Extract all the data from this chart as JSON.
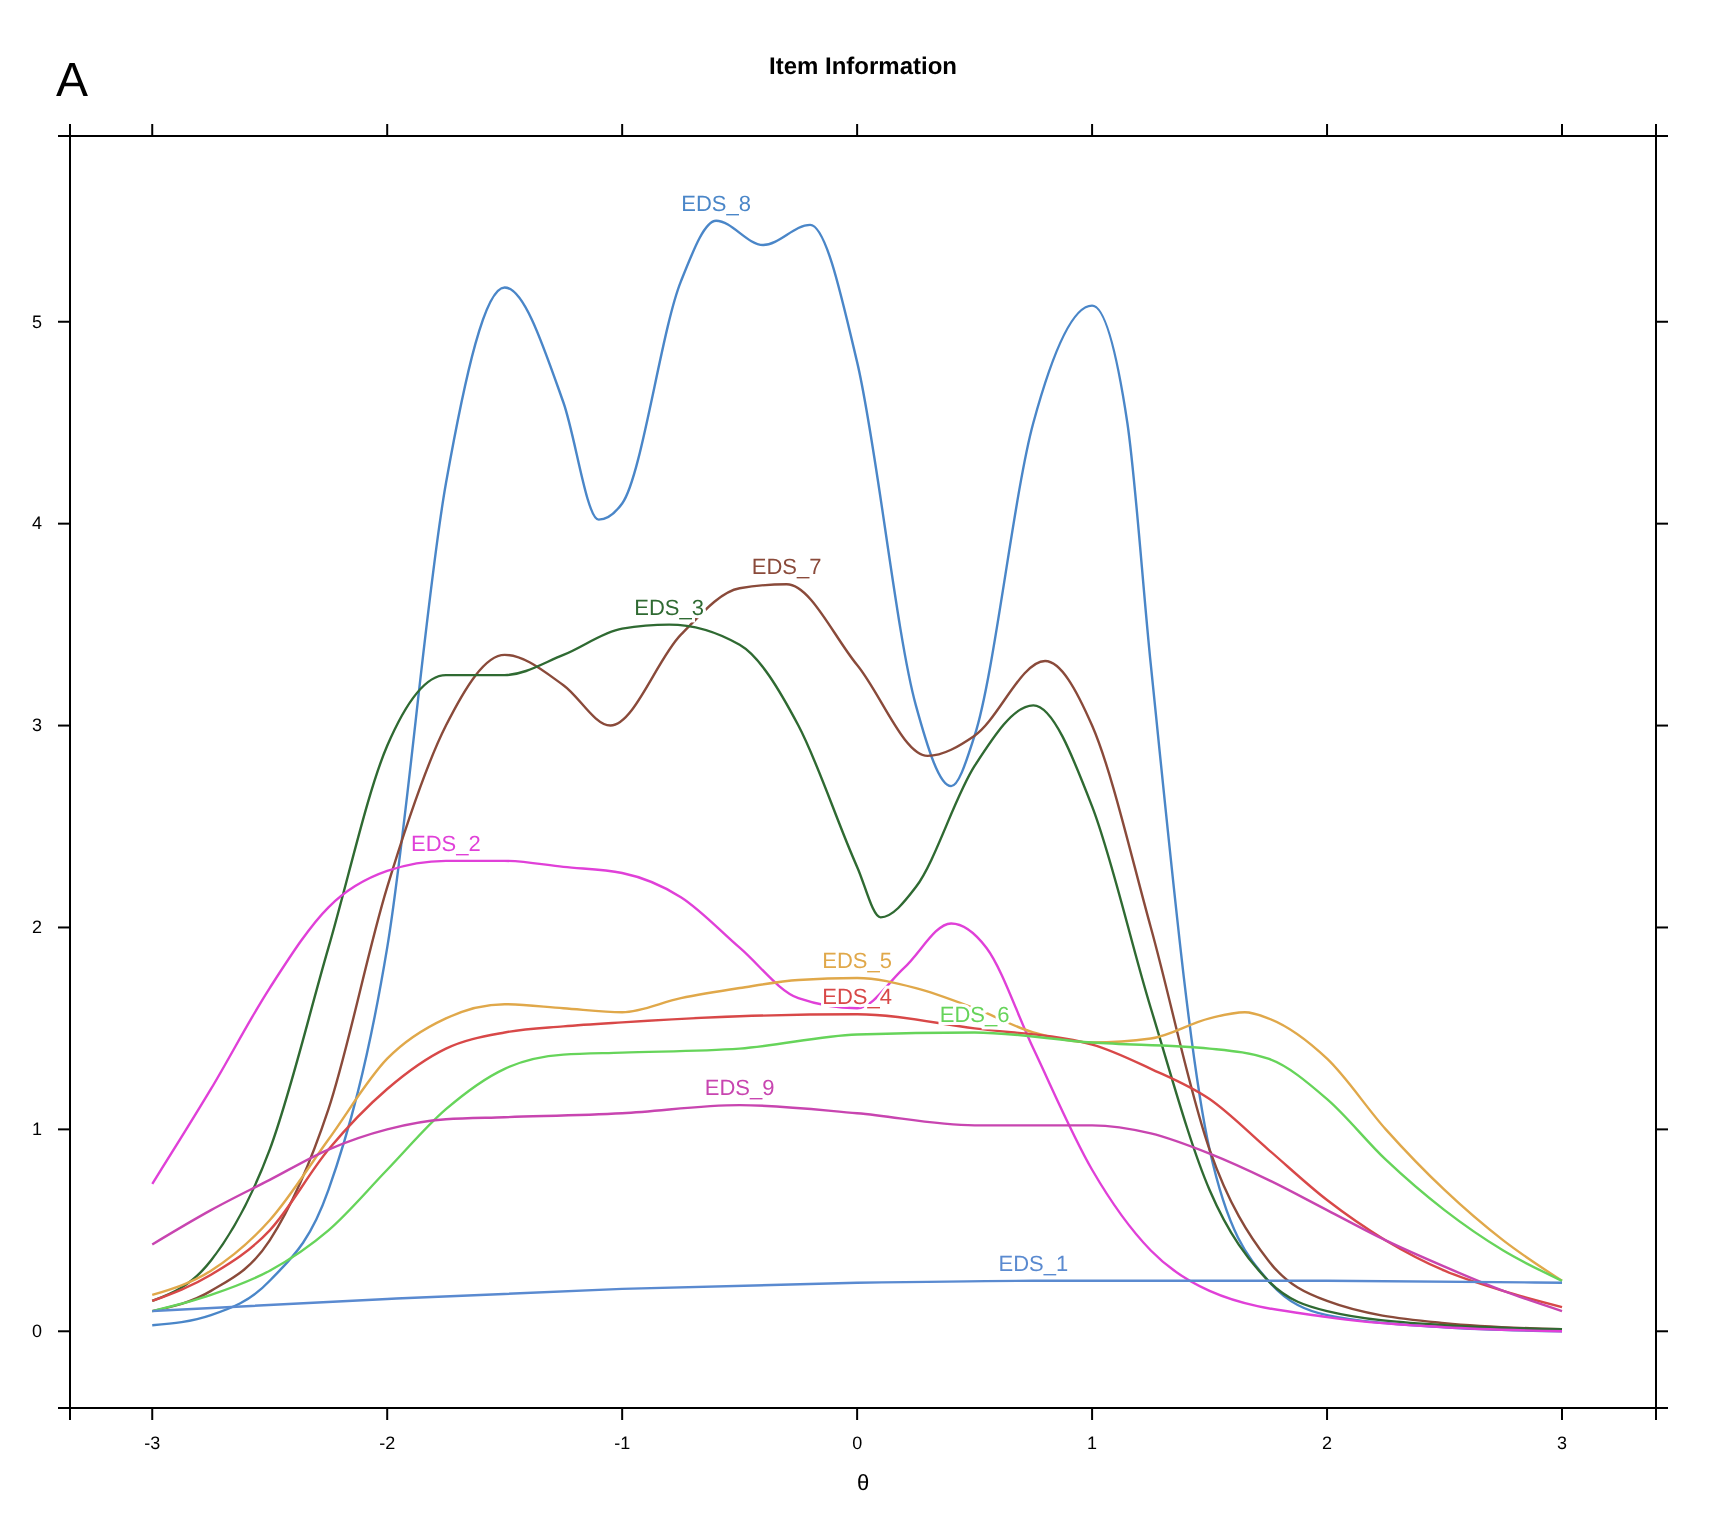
{
  "chart_data": {
    "type": "line",
    "title": "Item Information",
    "xlabel": "θ",
    "annotations": [
      "A"
    ],
    "xlim": [
      -3.35,
      3.4
    ],
    "ylim": [
      -0.38,
      5.92
    ],
    "xticks": [
      -3,
      -2,
      -1,
      0,
      1,
      2,
      3
    ],
    "yticks": [
      0,
      1,
      2,
      3,
      4,
      5
    ],
    "grid": false,
    "legend": false,
    "marker": "none",
    "line_style": "solid",
    "series": [
      {
        "name": "EDS_8",
        "color": "#4a86c8",
        "x": [
          -3,
          -2.75,
          -2.5,
          -2.25,
          -2,
          -1.75,
          -1.5,
          -1.25,
          -1.1,
          -1,
          -0.75,
          -0.6,
          -0.4,
          -0.2,
          0,
          0.25,
          0.4,
          0.5,
          0.75,
          1,
          1.15,
          1.25,
          1.5,
          1.75,
          2,
          2.5,
          3
        ],
        "values": [
          0.03,
          0.08,
          0.25,
          0.7,
          1.9,
          4.2,
          5.17,
          4.6,
          4.02,
          4.1,
          5.2,
          5.5,
          5.38,
          5.48,
          4.8,
          3.1,
          2.7,
          2.95,
          4.5,
          5.08,
          4.5,
          3.3,
          0.9,
          0.25,
          0.08,
          0.02,
          0
        ]
      },
      {
        "name": "EDS_7",
        "color": "#8a4a3a",
        "x": [
          -3,
          -2.75,
          -2.5,
          -2.25,
          -2,
          -1.75,
          -1.5,
          -1.25,
          -1.05,
          -0.75,
          -0.5,
          -0.3,
          0,
          0.3,
          0.5,
          0.8,
          1,
          1.25,
          1.5,
          1.75,
          2,
          2.5,
          3
        ],
        "values": [
          0.1,
          0.2,
          0.45,
          1.1,
          2.2,
          3,
          3.35,
          3.2,
          3,
          3.45,
          3.68,
          3.7,
          3.3,
          2.85,
          2.95,
          3.32,
          3,
          2,
          0.9,
          0.35,
          0.15,
          0.04,
          0.01
        ]
      },
      {
        "name": "EDS_3",
        "color": "#2f6a32",
        "x": [
          -3,
          -2.75,
          -2.5,
          -2.25,
          -2,
          -1.75,
          -1.5,
          -1.25,
          -1,
          -0.8,
          -0.5,
          -0.25,
          0,
          0.1,
          0.25,
          0.5,
          0.75,
          1,
          1.25,
          1.5,
          1.75,
          2,
          2.5,
          3
        ],
        "values": [
          0.15,
          0.35,
          0.9,
          1.9,
          2.9,
          3.25,
          3.25,
          3.35,
          3.48,
          3.5,
          3.4,
          3,
          2.3,
          2.05,
          2.2,
          2.8,
          3.1,
          2.6,
          1.6,
          0.7,
          0.25,
          0.1,
          0.03,
          0.01
        ]
      },
      {
        "name": "EDS_2",
        "color": "#e040d8",
        "x": [
          -3,
          -2.75,
          -2.5,
          -2.25,
          -2,
          -1.75,
          -1.5,
          -1.25,
          -1,
          -0.75,
          -0.5,
          -0.25,
          0,
          0.2,
          0.4,
          0.55,
          0.75,
          1,
          1.25,
          1.5,
          2,
          2.5,
          3
        ],
        "values": [
          0.73,
          1.2,
          1.7,
          2.1,
          2.28,
          2.33,
          2.33,
          2.3,
          2.27,
          2.15,
          1.9,
          1.65,
          1.6,
          1.8,
          2.02,
          1.9,
          1.4,
          0.8,
          0.4,
          0.2,
          0.07,
          0.02,
          0
        ]
      },
      {
        "name": "EDS_5",
        "color": "#e0a84a",
        "x": [
          -3,
          -2.75,
          -2.5,
          -2.25,
          -2,
          -1.75,
          -1.5,
          -1.25,
          -1,
          -0.75,
          -0.5,
          -0.25,
          0,
          0.25,
          0.5,
          0.75,
          1,
          1.25,
          1.5,
          1.65,
          1.75,
          2,
          2.25,
          2.5,
          2.75,
          3
        ],
        "values": [
          0.18,
          0.3,
          0.55,
          0.95,
          1.35,
          1.55,
          1.62,
          1.6,
          1.58,
          1.65,
          1.7,
          1.74,
          1.75,
          1.7,
          1.6,
          1.48,
          1.43,
          1.45,
          1.55,
          1.58,
          1.55,
          1.35,
          1,
          0.7,
          0.45,
          0.25
        ]
      },
      {
        "name": "EDS_4",
        "color": "#d84848",
        "x": [
          -3,
          -2.75,
          -2.5,
          -2.25,
          -2,
          -1.75,
          -1.5,
          -1.25,
          -1,
          -0.5,
          0,
          0.5,
          1,
          1.25,
          1.5,
          1.75,
          2,
          2.25,
          2.5,
          2.75,
          3
        ],
        "values": [
          0.15,
          0.28,
          0.5,
          0.9,
          1.2,
          1.4,
          1.48,
          1.51,
          1.53,
          1.56,
          1.57,
          1.5,
          1.42,
          1.3,
          1.15,
          0.9,
          0.65,
          0.45,
          0.3,
          0.2,
          0.12
        ]
      },
      {
        "name": "EDS_6",
        "color": "#66d45a",
        "x": [
          -3,
          -2.75,
          -2.5,
          -2.25,
          -2,
          -1.75,
          -1.5,
          -1.25,
          -1,
          -0.5,
          0,
          0.5,
          1,
          1.5,
          1.75,
          2,
          2.25,
          2.5,
          2.75,
          3
        ],
        "values": [
          0.1,
          0.18,
          0.3,
          0.5,
          0.8,
          1.1,
          1.3,
          1.37,
          1.38,
          1.4,
          1.47,
          1.48,
          1.43,
          1.4,
          1.35,
          1.15,
          0.85,
          0.6,
          0.4,
          0.25
        ]
      },
      {
        "name": "EDS_9",
        "color": "#c845b0",
        "x": [
          -3,
          -2.75,
          -2.5,
          -2.25,
          -2,
          -1.75,
          -1.5,
          -1,
          -0.5,
          0,
          0.5,
          1,
          1.25,
          1.5,
          1.75,
          2,
          2.25,
          2.5,
          2.75,
          3
        ],
        "values": [
          0.43,
          0.6,
          0.75,
          0.9,
          1,
          1.05,
          1.06,
          1.08,
          1.12,
          1.08,
          1.02,
          1.02,
          0.98,
          0.88,
          0.75,
          0.6,
          0.45,
          0.32,
          0.2,
          0.1
        ]
      },
      {
        "name": "EDS_1",
        "color": "#5a8ad0",
        "x": [
          -3,
          -2,
          -1,
          0,
          0.75,
          2,
          3
        ],
        "values": [
          0.1,
          0.16,
          0.21,
          0.24,
          0.25,
          0.25,
          0.24
        ]
      }
    ]
  }
}
